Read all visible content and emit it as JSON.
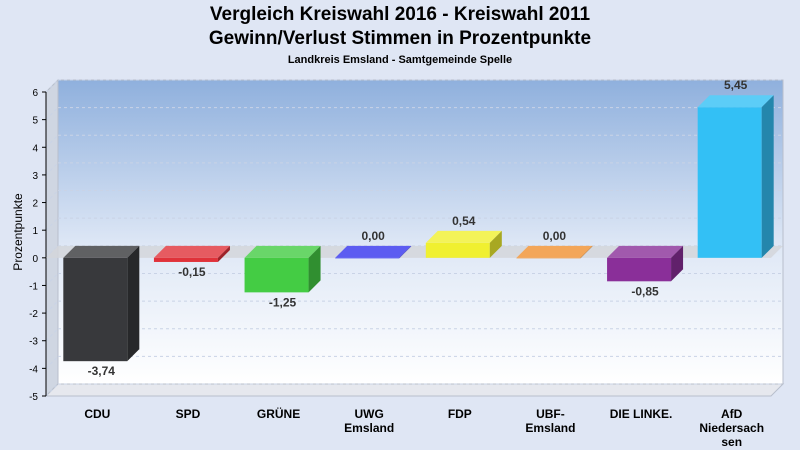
{
  "header": {
    "title_line1": "Vergleich Kreiswahl 2016 - Kreiswahl 2011",
    "title_line2": "Gewinn/Verlust Stimmen in Prozentpunkte",
    "subtitle": "Landkreis Emsland - Samtgemeinde Spelle"
  },
  "chart_data": {
    "type": "bar",
    "title": "Vergleich Kreiswahl 2016 - Kreiswahl 2011 Gewinn/Verlust Stimmen in Prozentpunkte",
    "subtitle": "Landkreis Emsland - Samtgemeinde Spelle",
    "xlabel": "",
    "ylabel": "Prozentpunkte",
    "ylim": [
      -5,
      6
    ],
    "yticks": [
      -5,
      -4,
      -3,
      -2,
      -1,
      0,
      1,
      2,
      3,
      4,
      5,
      6
    ],
    "grid": true,
    "legend": "none",
    "categories": [
      "CDU",
      "SPD",
      "GRÜNE",
      "UWG Emsland",
      "FDP",
      "UBF-Emsland",
      "DIE LINKE.",
      "AfD Niedersachsen"
    ],
    "category_labels": [
      [
        "CDU"
      ],
      [
        "SPD"
      ],
      [
        "GRÜNE"
      ],
      [
        "UWG",
        "Emsland"
      ],
      [
        "FDP"
      ],
      [
        "UBF-",
        "Emsland"
      ],
      [
        "DIE LINKE."
      ],
      [
        "AfD",
        "Niedersach",
        "sen"
      ]
    ],
    "values": [
      -3.74,
      -0.15,
      -1.25,
      0.0,
      0.54,
      0.0,
      -0.85,
      5.45
    ],
    "data_labels": [
      "-3,74",
      "-0,15",
      "-1,25",
      "0,00",
      "0,54",
      "0,00",
      "-0,85",
      "5,45"
    ],
    "colors": [
      "#38393c",
      "#e0323a",
      "#44cc44",
      "#3333ee",
      "#f0f030",
      "#f09030",
      "#8a2f99",
      "#33c0f5"
    ]
  }
}
